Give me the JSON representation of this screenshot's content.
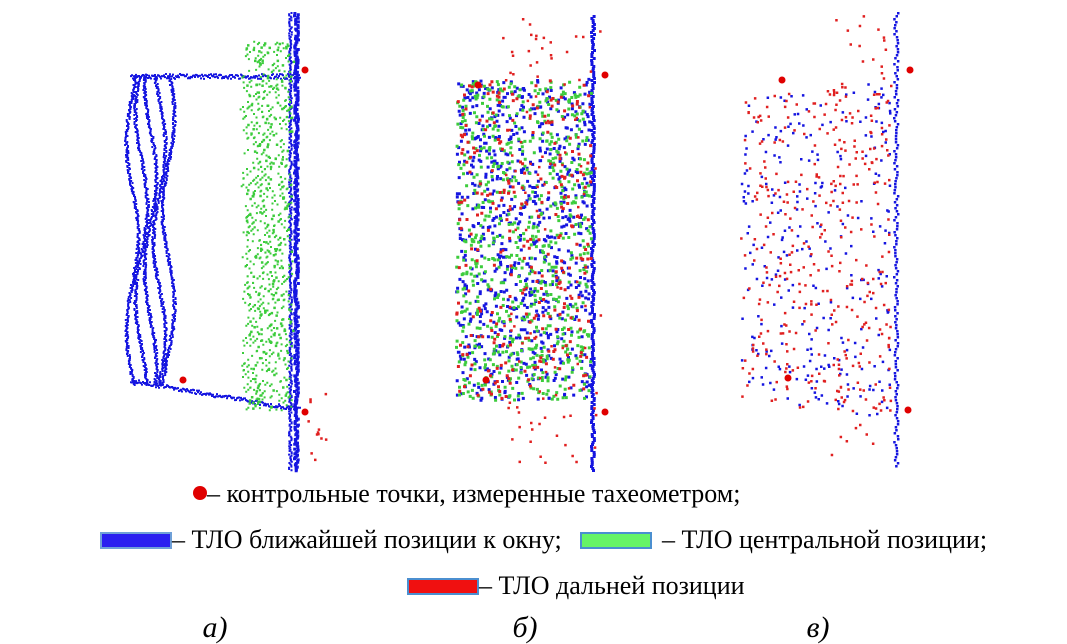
{
  "legend": {
    "control_points": "– контрольные точки, измеренные тахеометром;",
    "near": "– ТЛО ближайшей позиции к окну;",
    "center": "– ТЛО центральной позиции;",
    "far": "– ТЛО дальней позиции"
  },
  "panels": [
    "а)",
    "б)",
    "в)"
  ]
}
